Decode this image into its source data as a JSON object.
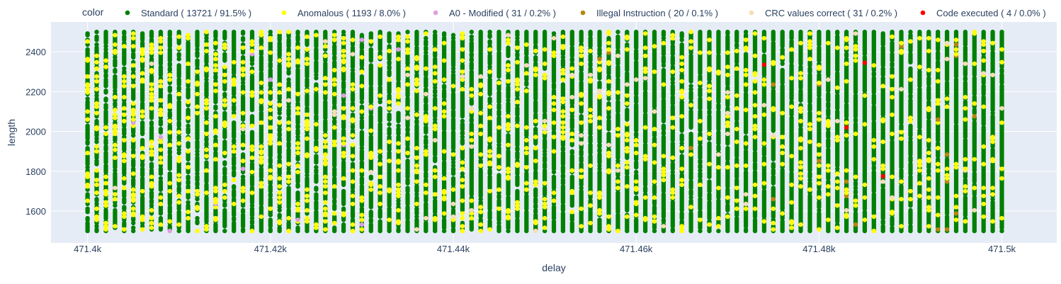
{
  "chart_data": {
    "type": "scatter",
    "xlabel": "delay",
    "ylabel": "length",
    "legend_title": "color",
    "legend_placement": "top",
    "grid": true,
    "xlim": [
      471396,
      471506
    ],
    "ylim": [
      1440,
      2550
    ],
    "x_ticks": [
      471400,
      471420,
      471440,
      471460,
      471480,
      471500
    ],
    "x_tick_labels": [
      "471.4k",
      "471.42k",
      "471.44k",
      "471.46k",
      "471.48k",
      "471.5k"
    ],
    "y_ticks": [
      1600,
      1800,
      2000,
      2200,
      2400
    ],
    "y_tick_labels": [
      "1600",
      "1800",
      "2000",
      "2200",
      "2400"
    ],
    "sampling": {
      "x_min": 471400,
      "x_max": 471500,
      "x_step": 1,
      "y_min": 1500,
      "y_max": 2500,
      "y_step": 8
    },
    "series": [
      {
        "name": "Standard ( 13721 / 91.5% )",
        "color": "#008000",
        "count": 13721
      },
      {
        "name": "Anomalous ( 1193 / 8.0% )",
        "color": "#ffff00",
        "count": 1193
      },
      {
        "name": "A0 - Modified ( 31 / 0.2% )",
        "color": "#dda0dd",
        "count": 31
      },
      {
        "name": "Illegal Instruction ( 20 / 0.1% )",
        "color": "#b8860b",
        "count": 20
      },
      {
        "name": "CRC values correct ( 31 / 0.2% )",
        "color": "#f5deb3",
        "count": 31
      },
      {
        "name": "Code executed ( 4 / 0.0% )",
        "color": "#ff0000",
        "count": 4,
        "points": [
          [
            471474,
            2335
          ],
          [
            471483,
            2020
          ],
          [
            471485,
            2345
          ],
          [
            471487,
            1775
          ]
        ]
      }
    ]
  }
}
